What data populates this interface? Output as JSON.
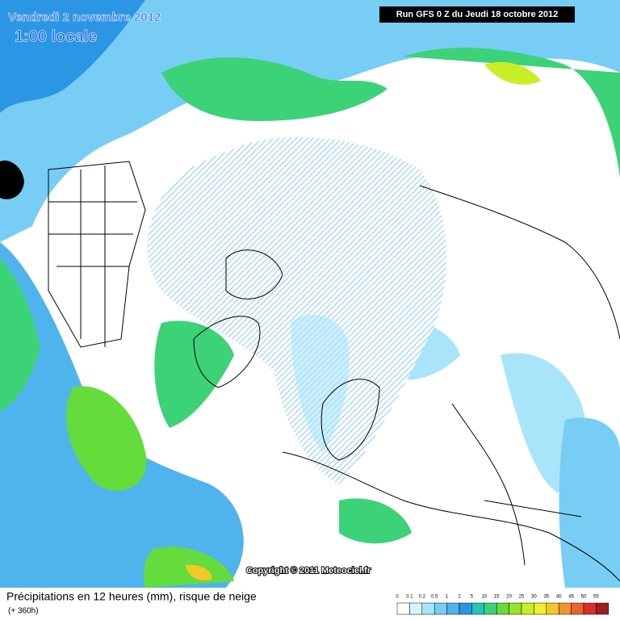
{
  "header": {
    "date": "Vendredi 2 novembre 2012",
    "time": "1:00 locale",
    "run": "Run GFS 0 Z du Jeudi 18 octobre 2012"
  },
  "copyright": "Copyright © 2011 Meteociel.fr",
  "footer": {
    "title": "Précipitations en 12 heures (mm), risque de neige",
    "lead": "(+ 360h)"
  },
  "legend": {
    "values": [
      0,
      0.1,
      0.2,
      0.5,
      1,
      2,
      5,
      10,
      15,
      20,
      25,
      30,
      35,
      40,
      45,
      50,
      55
    ],
    "colors": [
      "#ffffff",
      "#d7f5ff",
      "#a8e4fa",
      "#78cdf5",
      "#4fb4ee",
      "#2a96e4",
      "#1ec8b4",
      "#3cd278",
      "#64dc3c",
      "#96e628",
      "#c8ee28",
      "#f0f028",
      "#f0c828",
      "#f09628",
      "#e8642a",
      "#d2322a",
      "#a01e1e"
    ]
  }
}
